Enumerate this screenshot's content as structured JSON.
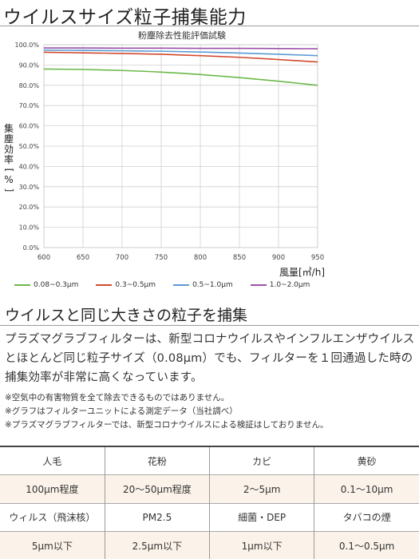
{
  "page_title": "ウイルスサイズ粒子捕集能力",
  "chart_data": {
    "type": "line",
    "title": "粉塵除去性能評価試験",
    "xlabel": "風量[㎥/h]",
    "ylabel_chars": [
      "集",
      "塵",
      "効",
      "率"
    ],
    "ylabel_unit": "%",
    "x": [
      600,
      650,
      700,
      750,
      800,
      850,
      900,
      950
    ],
    "x_ticks": [
      "600",
      "650",
      "700",
      "750",
      "800",
      "850",
      "900",
      "950"
    ],
    "y_ticks": [
      "0.0%",
      "10.0%",
      "20.0%",
      "30.0%",
      "40.0%",
      "50.0%",
      "60.0%",
      "70.0%",
      "80.0%",
      "90.0%",
      "100.0%"
    ],
    "xlim": [
      600,
      950
    ],
    "ylim": [
      0,
      100
    ],
    "grid": true,
    "legend_position": "bottom",
    "series": [
      {
        "name": "0.08~0.3μm",
        "color": "#6cb84a",
        "values": [
          88.0,
          87.8,
          87.3,
          86.5,
          85.3,
          83.8,
          82.0,
          80.0
        ]
      },
      {
        "name": "0.3~0.5μm",
        "color": "#d14a2e",
        "values": [
          96.3,
          96.0,
          95.7,
          95.3,
          94.6,
          93.8,
          92.7,
          91.5
        ]
      },
      {
        "name": "0.5~1.0μm",
        "color": "#5b9bd5",
        "values": [
          97.3,
          97.2,
          97.0,
          96.8,
          96.4,
          95.9,
          95.3,
          94.6
        ]
      },
      {
        "name": "1.0~2.0μm",
        "color": "#9b4fa8",
        "values": [
          98.4,
          98.4,
          98.3,
          98.3,
          98.2,
          98.2,
          98.1,
          98.0
        ]
      }
    ]
  },
  "section_heading": "ウイルスと同じ大きさの粒子を捕集",
  "body_text": "プラズマグラブフィルターは、新型コロナウイルスやインフルエンザウイルスとほとんど同じ粒子サイズ（0.08μm）でも、フィルターを１回通過した時の捕集効率が非常に高くなっています。",
  "notes": [
    "※空気中の有害物質を全て除去できるものではありません。",
    "※グラフはフィルターユニットによる測定データ（当社調べ）",
    "※プラズマグラブフィルターでは、新型コロナウイルスによる検証はしておりません。"
  ],
  "table": {
    "headers": [
      "人毛",
      "花粉",
      "カビ",
      "黄砂"
    ],
    "rows": [
      [
        "100μm程度",
        "20～50μm程度",
        "2～5μm",
        "0.1～10μm"
      ],
      [
        "ウィルス（飛沫核）",
        "PM2.5",
        "細菌・DEP",
        "タバコの煙"
      ],
      [
        "5μm以下",
        "2.5μm以下",
        "1μm以下",
        "0.1～0.5μm"
      ]
    ]
  }
}
